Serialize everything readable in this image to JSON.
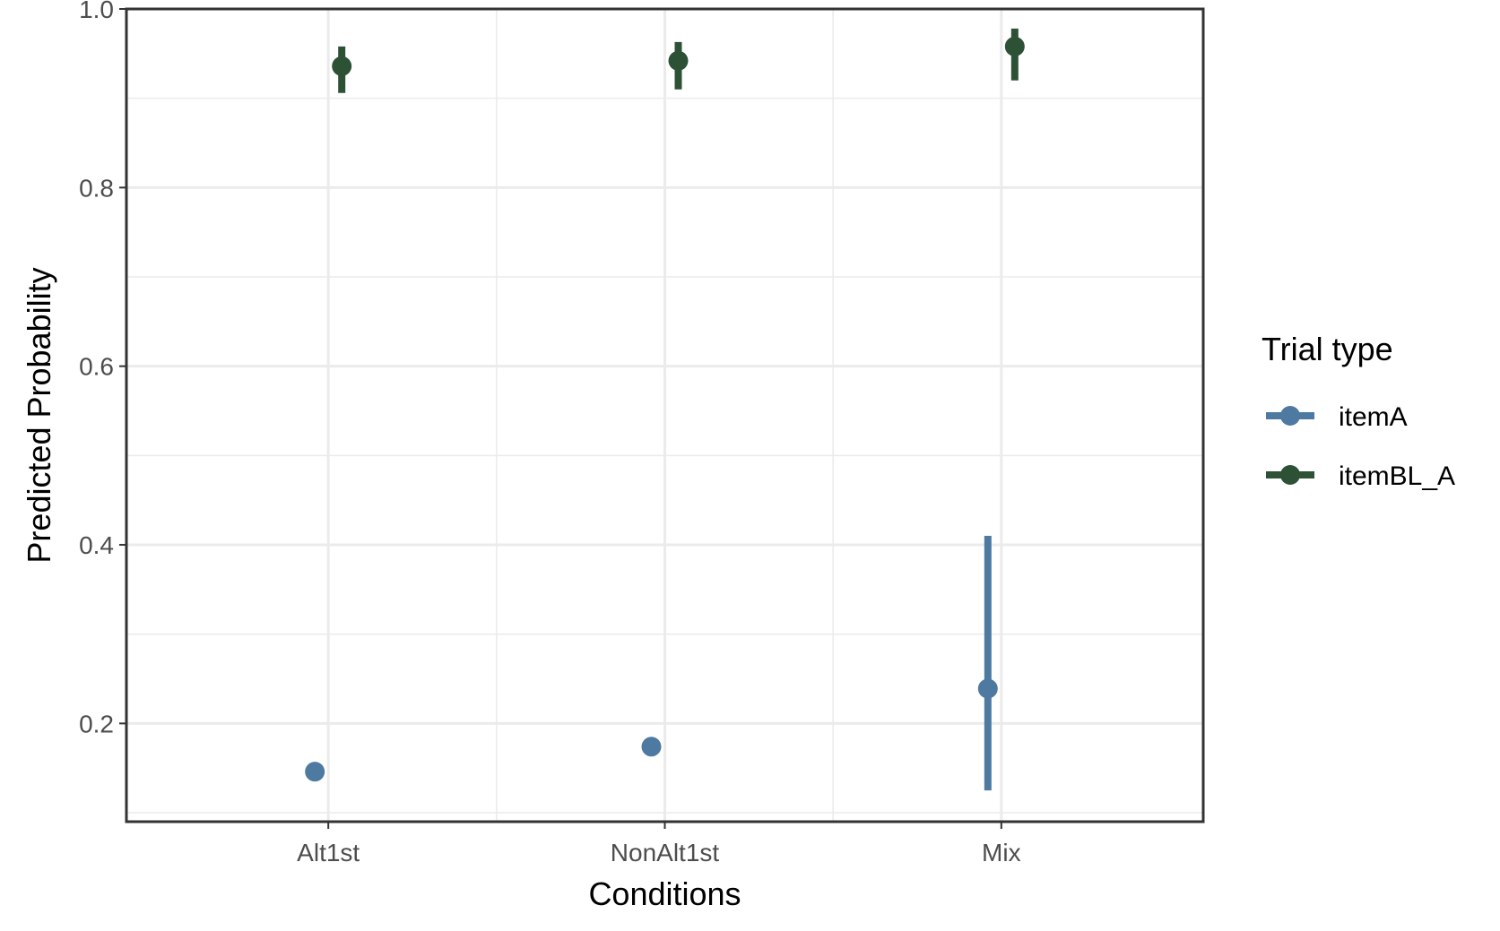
{
  "chart_data": {
    "type": "scatter",
    "categories": [
      "Alt1st",
      "NonAlt1st",
      "Mix"
    ],
    "xlabel": "Conditions",
    "ylabel": "Predicted Probability",
    "ylim": [
      0.09,
      1.0
    ],
    "yticks": [
      0.2,
      0.4,
      0.6,
      0.8,
      1.0
    ],
    "ytick_labels": [
      "0.2",
      "0.4",
      "0.6",
      "0.8",
      "1.0"
    ],
    "grid": true,
    "legend": {
      "title": "Trial type",
      "position": "right"
    },
    "series": [
      {
        "name": "itemA",
        "color": "#4e79a0",
        "values": [
          0.146,
          0.174,
          0.239
        ],
        "lower": [
          0.146,
          0.174,
          0.125
        ],
        "upper": [
          0.146,
          0.174,
          0.41
        ]
      },
      {
        "name": "itemBL_A",
        "color": "#2d5135",
        "values": [
          0.936,
          0.942,
          0.958
        ],
        "lower": [
          0.906,
          0.91,
          0.92
        ],
        "upper": [
          0.958,
          0.963,
          0.978
        ]
      }
    ]
  }
}
